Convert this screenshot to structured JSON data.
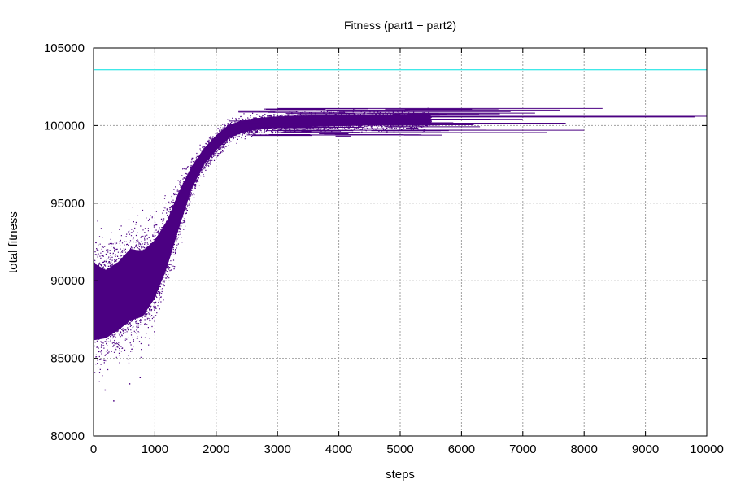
{
  "chart_data": {
    "type": "scatter",
    "title": "Fitness (part1 + part2)",
    "xlabel": "steps",
    "ylabel": "total fitness",
    "xlim": [
      0,
      10000
    ],
    "ylim": [
      80000,
      105000
    ],
    "x_ticks": [
      "0",
      "1000",
      "2000",
      "3000",
      "4000",
      "5000",
      "6000",
      "7000",
      "8000",
      "9000",
      "10000"
    ],
    "y_ticks": [
      "80000",
      "85000",
      "90000",
      "95000",
      "100000",
      "105000"
    ],
    "grid": true,
    "colors": {
      "points": "#4b0082",
      "reference_line": "#00e0e0",
      "grid": "#a0a0a0"
    },
    "series": [
      {
        "style": "dense point cloud",
        "envelope": {
          "x": [
            0,
            200,
            400,
            600,
            800,
            1000,
            1200,
            1400,
            1600,
            1800,
            2000,
            2200,
            2400,
            2600,
            2800,
            3000,
            3500,
            4000,
            4500,
            5000,
            5500
          ],
          "y_low": [
            83000,
            83500,
            84000,
            84500,
            85000,
            86500,
            89000,
            92000,
            95000,
            96800,
            97800,
            98600,
            99000,
            99200,
            99300,
            99400,
            99450,
            99500,
            99550,
            99550,
            99550
          ],
          "y_high": [
            94300,
            93500,
            94000,
            95000,
            94600,
            95000,
            95800,
            97300,
            98300,
            99200,
            100000,
            100600,
            100800,
            100950,
            101000,
            101050,
            101100,
            101150,
            101150,
            101150,
            101150
          ]
        },
        "outliers": [
          {
            "x": 320,
            "y": 82300
          },
          {
            "x": 580,
            "y": 83400
          },
          {
            "x": 750,
            "y": 83800
          },
          {
            "x": 180,
            "y": 83000
          }
        ],
        "horizontal_segments": [
          {
            "x0": 3000,
            "x1": 8300,
            "y": 101100
          },
          {
            "x0": 4500,
            "x1": 10000,
            "y": 100600
          },
          {
            "x0": 3800,
            "x1": 7600,
            "y": 101000
          },
          {
            "x0": 4000,
            "x1": 7200,
            "y": 100800
          },
          {
            "x0": 3500,
            "x1": 7000,
            "y": 100400
          },
          {
            "x0": 3500,
            "x1": 7700,
            "y": 100150
          },
          {
            "x0": 3000,
            "x1": 8000,
            "y": 99700
          },
          {
            "x0": 3000,
            "x1": 7400,
            "y": 99550
          },
          {
            "x0": 5500,
            "x1": 9800,
            "y": 100550
          },
          {
            "x0": 4000,
            "x1": 6800,
            "y": 100900
          },
          {
            "x0": 3000,
            "x1": 6200,
            "y": 100050
          },
          {
            "x0": 2500,
            "x1": 5300,
            "y": 99400
          }
        ]
      },
      {
        "style": "horizontal line",
        "y": 103600
      }
    ]
  }
}
